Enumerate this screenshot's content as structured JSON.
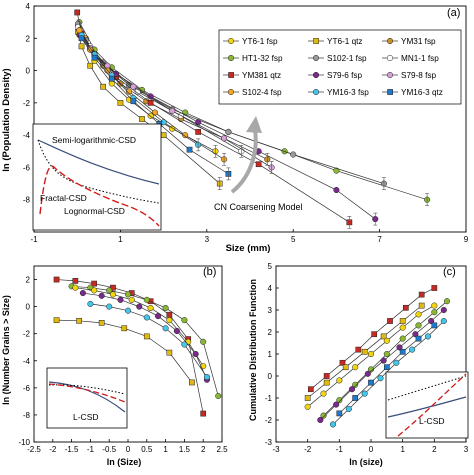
{
  "figure": {
    "panel_labels": [
      "(a)",
      "(b)",
      "(c)"
    ],
    "inset_labels_a": [
      "Semi-logarithmic-CSD",
      "Fractal-CSD",
      "Lognormal-CSD"
    ],
    "inset_label_b": "L-CSD",
    "inset_label_c": "L-CSD",
    "annotation_a": "CN Coarsening Model"
  },
  "chart_data": [
    {
      "panel": "(a)",
      "type": "line",
      "xlabel": "Size (mm)",
      "ylabel": "ln (Population Density)",
      "xlim": [
        -1,
        9
      ],
      "ylim": [
        -10,
        4
      ],
      "xticks": [
        "-1",
        "1",
        "3",
        "5",
        "7",
        "9"
      ],
      "yticks": [
        "4",
        "2",
        "0",
        "-2",
        "-4",
        "-6",
        "-8"
      ],
      "legend_position": "upper-right",
      "series": [
        {
          "name": "YT6-1 fsp",
          "marker": "circle",
          "color": "#f2d40f",
          "x": [
            0.02,
            0.2,
            0.4,
            0.8,
            1.2,
            1.7,
            2.2,
            3.2
          ],
          "y": [
            2.8,
            2.0,
            0.6,
            -0.8,
            -1.8,
            -2.8,
            -3.6,
            -5.0
          ]
        },
        {
          "name": "YT6-1 qtz",
          "marker": "square",
          "color": "#e1b90f",
          "x": [
            0.02,
            0.1,
            0.3,
            0.6,
            1.0,
            1.5,
            2.0,
            3.3
          ],
          "y": [
            2.4,
            1.5,
            0.3,
            -1.0,
            -2.0,
            -3.0,
            -4.0,
            -7.0
          ]
        },
        {
          "name": "YM31 fsp",
          "marker": "circle",
          "color": "#c98f2a",
          "x": [
            0.05,
            0.3,
            0.6,
            1.0,
            1.6,
            2.4,
            3.4,
            4.4
          ],
          "y": [
            2.6,
            1.3,
            0.3,
            -0.8,
            -1.9,
            -3.0,
            -4.2,
            -5.5
          ]
        },
        {
          "name": "HT1-32 fsp",
          "marker": "circle",
          "color": "#8ab833",
          "x": [
            0.05,
            0.4,
            0.8,
            1.5,
            2.5,
            3.5,
            4.8,
            6.0,
            8.1
          ],
          "y": [
            3.0,
            1.3,
            0.2,
            -1.2,
            -2.6,
            -3.8,
            -5.0,
            -6.2,
            -8.0
          ]
        },
        {
          "name": "S102-1 fsp",
          "marker": "circle",
          "color": "#9a9a9a",
          "x": [
            0.02,
            0.2,
            0.6,
            1.2,
            2.2,
            3.5,
            5.0,
            7.1
          ],
          "y": [
            2.9,
            1.9,
            0.5,
            -0.9,
            -2.4,
            -3.8,
            -5.2,
            -7.0
          ]
        },
        {
          "name": "MN1-1 fsp",
          "marker": "circle",
          "color": "#ffffff",
          "x": [
            0.02,
            0.3,
            0.7,
            1.4,
            2.4,
            3.8
          ],
          "y": [
            2.7,
            1.5,
            0.2,
            -1.3,
            -2.8,
            -5.0
          ]
        },
        {
          "name": "YM381 qtz",
          "marker": "square",
          "color": "#c42b24",
          "x": [
            0.0,
            0.1,
            0.4,
            0.9,
            1.7,
            2.8,
            4.2,
            6.3
          ],
          "y": [
            3.6,
            2.3,
            1.0,
            -0.4,
            -2.0,
            -3.8,
            -5.8,
            -9.4
          ]
        },
        {
          "name": "S79-6 fsp",
          "marker": "circle",
          "color": "#7a2a8a",
          "x": [
            0.05,
            0.4,
            0.9,
            1.7,
            2.8,
            4.2,
            6.0,
            6.9
          ],
          "y": [
            2.2,
            1.0,
            -0.2,
            -1.6,
            -3.2,
            -5.0,
            -7.4,
            -9.2
          ]
        },
        {
          "name": "S79-8 fsp",
          "marker": "circle",
          "color": "#d8a0d8",
          "x": [
            0.05,
            0.3,
            0.7,
            1.3,
            2.2,
            3.4,
            4.5
          ],
          "y": [
            2.5,
            1.4,
            0.3,
            -1.0,
            -2.5,
            -4.2,
            -6.0
          ]
        },
        {
          "name": "S102-4 fsp",
          "marker": "circle",
          "color": "#f5a623",
          "x": [
            0.05,
            0.3,
            0.7,
            1.2,
            1.8,
            2.5,
            3.4
          ],
          "y": [
            2.5,
            1.3,
            0.0,
            -1.3,
            -2.6,
            -4.0,
            -5.5
          ]
        },
        {
          "name": "YM16-3 fsp",
          "marker": "circle",
          "color": "#45c4e8",
          "x": [
            0.1,
            0.4,
            0.8,
            1.3,
            2.0,
            2.8
          ],
          "y": [
            2.2,
            1.0,
            -0.3,
            -1.7,
            -3.2,
            -4.6
          ]
        },
        {
          "name": "YM16-3 qtz",
          "marker": "square",
          "color": "#1f78c8",
          "x": [
            0.1,
            0.4,
            0.8,
            1.3,
            1.9,
            2.6,
            3.5
          ],
          "y": [
            2.0,
            0.8,
            -0.5,
            -1.9,
            -3.3,
            -4.9,
            -6.4
          ]
        }
      ]
    },
    {
      "panel": "(b)",
      "type": "line",
      "xlabel": "ln (Size)",
      "ylabel": "ln (Number Grains > Size)",
      "xlim": [
        -2.5,
        2.5
      ],
      "ylim": [
        -10,
        3
      ],
      "xticks": [
        "-2.5",
        "-2",
        "-1.5",
        "-1",
        "-0.5",
        "0",
        "0.5",
        "1",
        "1.5",
        "2",
        "2.5"
      ],
      "yticks": [
        "2",
        "0",
        "-2",
        "-4",
        "-6",
        "-8",
        "-10"
      ],
      "series": [
        {
          "name": "YM381 qtz",
          "marker": "square",
          "color": "#c42b24",
          "x": [
            -1.9,
            -1.4,
            -0.9,
            -0.4,
            0.1,
            0.6,
            1.1,
            1.6,
            2.0
          ],
          "y": [
            2.0,
            1.9,
            1.7,
            1.4,
            1.0,
            0.4,
            -0.6,
            -2.4,
            -7.9
          ]
        },
        {
          "name": "YT6-1 qtz",
          "marker": "square",
          "color": "#e1b90f",
          "x": [
            -1.9,
            -1.3,
            -0.7,
            -0.1,
            0.5,
            1.1,
            1.7
          ],
          "y": [
            -1.0,
            -1.05,
            -1.2,
            -1.6,
            -2.2,
            -3.4,
            -5.6
          ]
        },
        {
          "name": "HT1-32 fsp",
          "marker": "circle",
          "color": "#8ab833",
          "x": [
            -1.5,
            -1.0,
            -0.5,
            0.0,
            0.5,
            1.0,
            1.5,
            2.0,
            2.4
          ],
          "y": [
            1.5,
            1.4,
            1.2,
            0.9,
            0.5,
            -0.1,
            -1.0,
            -2.6,
            -6.6
          ]
        },
        {
          "name": "YT6-1 fsp",
          "marker": "circle",
          "color": "#f2d40f",
          "x": [
            -1.4,
            -0.9,
            -0.4,
            0.1,
            0.6,
            1.1,
            1.6,
            2.0
          ],
          "y": [
            1.4,
            1.2,
            0.9,
            0.5,
            -0.1,
            -1.0,
            -2.6,
            -4.4
          ]
        },
        {
          "name": "S79-6 fsp",
          "marker": "circle",
          "color": "#7a2a8a",
          "x": [
            -1.2,
            -0.7,
            -0.2,
            0.3,
            0.8,
            1.3,
            1.8,
            2.1
          ],
          "y": [
            1.0,
            0.8,
            0.5,
            0.0,
            -0.7,
            -1.8,
            -3.5,
            -5.4
          ]
        },
        {
          "name": "YM16-3 fsp",
          "marker": "circle",
          "color": "#45c4e8",
          "x": [
            -1.0,
            -0.5,
            0.0,
            0.5,
            1.0,
            1.5,
            2.1
          ],
          "y": [
            0.2,
            0.0,
            -0.3,
            -0.8,
            -1.6,
            -2.8,
            -5.2
          ]
        }
      ]
    },
    {
      "panel": "(c)",
      "type": "scatter",
      "xlabel": "ln (size)",
      "ylabel": "Cumulative Distribution Function",
      "xlim": [
        -3,
        3
      ],
      "ylim": [
        -3,
        5
      ],
      "xticks": [
        "-3",
        "-2",
        "-1",
        "0",
        "1",
        "2",
        "3"
      ],
      "yticks": [
        "5",
        "4",
        "3",
        "2",
        "1",
        "0",
        "-1",
        "-2",
        "-3"
      ],
      "series": [
        {
          "name": "YM381 qtz",
          "marker": "square",
          "color": "#c42b24",
          "x": [
            -1.9,
            -1.4,
            -0.9,
            -0.4,
            0.1,
            0.6,
            1.1,
            1.6,
            2.0
          ],
          "y": [
            -0.6,
            0.0,
            0.6,
            1.2,
            1.9,
            2.5,
            3.1,
            3.7,
            4.0
          ]
        },
        {
          "name": "YT6-1 qtz",
          "marker": "square",
          "color": "#e1b90f",
          "x": [
            -2.0,
            -1.4,
            -0.8,
            -0.2,
            0.4,
            1.0,
            1.6
          ],
          "y": [
            -1.0,
            -0.3,
            0.4,
            1.1,
            1.8,
            2.5,
            3.2
          ]
        },
        {
          "name": "HT1-32 fsp",
          "marker": "circle",
          "color": "#8ab833",
          "x": [
            -1.5,
            -1.0,
            -0.5,
            0.0,
            0.5,
            1.0,
            1.5,
            2.0,
            2.4
          ],
          "y": [
            -1.8,
            -1.1,
            -0.4,
            0.3,
            1.0,
            1.7,
            2.3,
            2.9,
            3.4
          ]
        },
        {
          "name": "YT6-1 fsp",
          "marker": "circle",
          "color": "#f2d40f",
          "x": [
            -2.0,
            -1.5,
            -1.0,
            -0.5,
            0.0,
            0.5,
            1.0,
            1.5,
            2.0
          ],
          "y": [
            -1.4,
            -0.8,
            -0.2,
            0.4,
            1.0,
            1.6,
            2.2,
            2.8,
            3.2
          ]
        },
        {
          "name": "S79-6 fsp",
          "marker": "circle",
          "color": "#7a2a8a",
          "x": [
            -1.6,
            -1.1,
            -0.6,
            -0.1,
            0.4,
            0.9,
            1.4,
            1.9,
            2.3
          ],
          "y": [
            -2.0,
            -1.3,
            -0.6,
            0.1,
            0.7,
            1.3,
            1.9,
            2.5,
            3.0
          ]
        },
        {
          "name": "YM16-3 fsp",
          "marker": "circle",
          "color": "#45c4e8",
          "x": [
            -1.2,
            -0.7,
            -0.2,
            0.3,
            0.8,
            1.3,
            1.8,
            2.3
          ],
          "y": [
            -2.2,
            -1.5,
            -0.8,
            -0.1,
            0.6,
            1.2,
            1.8,
            2.5
          ]
        },
        {
          "name": "YM16-3 qtz",
          "marker": "square",
          "color": "#1f78c8",
          "x": [
            -1.0,
            -0.5,
            0.0,
            0.5,
            1.0,
            1.5,
            2.0
          ],
          "y": [
            -1.7,
            -1.0,
            -0.3,
            0.4,
            1.1,
            1.7,
            2.3
          ]
        }
      ]
    }
  ]
}
